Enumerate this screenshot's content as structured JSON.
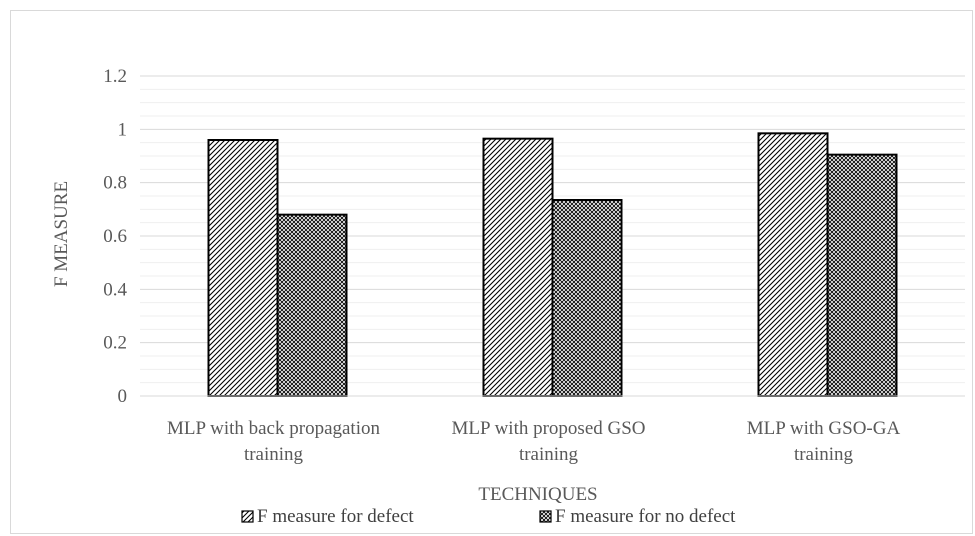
{
  "chart_data": {
    "type": "bar",
    "title": "",
    "xlabel": "TECHNIQUES",
    "ylabel": "F MEASURE",
    "ylim": [
      0,
      1.2
    ],
    "yticks": [
      "0",
      "0.2",
      "0.4",
      "0.6",
      "0.8",
      "1",
      "1.2"
    ],
    "categories": [
      [
        "MLP with back propagation",
        "training"
      ],
      [
        "MLP with proposed GSO",
        "training"
      ],
      [
        "MLP with GSO-GA",
        "training"
      ]
    ],
    "series": [
      {
        "name": "F measure for defect",
        "values": [
          0.96,
          0.965,
          0.985
        ],
        "pattern": "diagonal-hatch"
      },
      {
        "name": "F measure for no defect",
        "values": [
          0.68,
          0.735,
          0.905
        ],
        "pattern": "crosshatch"
      }
    ],
    "grid": true,
    "legend_position": "bottom",
    "colors": {
      "bar_outline": "#000000",
      "grid": "#e6e6e6",
      "text": "#595959"
    }
  }
}
